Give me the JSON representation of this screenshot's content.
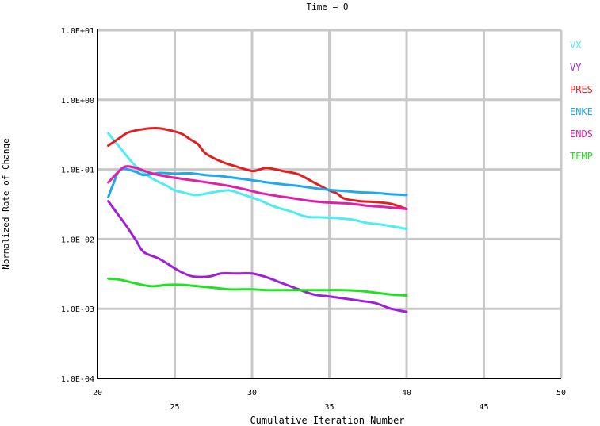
{
  "chart_data": {
    "type": "line",
    "title": "Time = 0",
    "xlabel": "Cumulative Iteration Number",
    "ylabel": "Normalized Rate of Change",
    "xlim": [
      20,
      50
    ],
    "ylim": [
      0.0001,
      10
    ],
    "yscale": "log",
    "grid": true,
    "legend_position": "right",
    "x_ticks": [
      20,
      25,
      30,
      35,
      40,
      45,
      50
    ],
    "y_ticks": [
      {
        "value": 10,
        "label": "1.0E+01"
      },
      {
        "value": 1,
        "label": "1.0E+00"
      },
      {
        "value": 0.1,
        "label": "1.0E-01"
      },
      {
        "value": 0.01,
        "label": "1.0E-02"
      },
      {
        "value": 0.001,
        "label": "1.0E-03"
      },
      {
        "value": 0.0001,
        "label": "1.0E-04"
      }
    ],
    "series": [
      {
        "name": "VX",
        "color": "#4dedf0",
        "points": [
          [
            20.7,
            0.33
          ],
          [
            21.5,
            0.2
          ],
          [
            22.5,
            0.11
          ],
          [
            23.5,
            0.075
          ],
          [
            24.5,
            0.058
          ],
          [
            25,
            0.05
          ],
          [
            25.5,
            0.047
          ],
          [
            26,
            0.044
          ],
          [
            26.5,
            0.043
          ],
          [
            27.5,
            0.047
          ],
          [
            28.5,
            0.05
          ],
          [
            29.5,
            0.043
          ],
          [
            30.5,
            0.036
          ],
          [
            31.5,
            0.029
          ],
          [
            32.5,
            0.025
          ],
          [
            33.5,
            0.021
          ],
          [
            34.5,
            0.0205
          ],
          [
            35.5,
            0.02
          ],
          [
            36.5,
            0.019
          ],
          [
            37.5,
            0.017
          ],
          [
            38.5,
            0.016
          ],
          [
            40,
            0.014
          ]
        ]
      },
      {
        "name": "VY",
        "color": "#a020d8",
        "points": [
          [
            20.7,
            0.035
          ],
          [
            21.5,
            0.02
          ],
          [
            22,
            0.014
          ],
          [
            22.5,
            0.0095
          ],
          [
            23,
            0.0065
          ],
          [
            24,
            0.0052
          ],
          [
            25,
            0.0038
          ],
          [
            25.5,
            0.0033
          ],
          [
            26.2,
            0.0029
          ],
          [
            27.2,
            0.0029
          ],
          [
            28,
            0.0032
          ],
          [
            29,
            0.0032
          ],
          [
            30,
            0.0032
          ],
          [
            31,
            0.0028
          ],
          [
            32,
            0.0023
          ],
          [
            33,
            0.0019
          ],
          [
            34,
            0.0016
          ],
          [
            35,
            0.0015
          ],
          [
            36,
            0.0014
          ],
          [
            37,
            0.0013
          ],
          [
            38,
            0.0012
          ],
          [
            39,
            0.001
          ],
          [
            40,
            0.0009
          ]
        ]
      },
      {
        "name": "PRES",
        "color": "#e02020",
        "points": [
          [
            20.7,
            0.22
          ],
          [
            21.5,
            0.29
          ],
          [
            22,
            0.34
          ],
          [
            23,
            0.38
          ],
          [
            24,
            0.39
          ],
          [
            25,
            0.35
          ],
          [
            25.5,
            0.32
          ],
          [
            26,
            0.27
          ],
          [
            26.5,
            0.23
          ],
          [
            27,
            0.17
          ],
          [
            28,
            0.13
          ],
          [
            29,
            0.11
          ],
          [
            30,
            0.095
          ],
          [
            30.5,
            0.1
          ],
          [
            31,
            0.105
          ],
          [
            32,
            0.095
          ],
          [
            33,
            0.085
          ],
          [
            34,
            0.065
          ],
          [
            35,
            0.05
          ],
          [
            35.5,
            0.045
          ],
          [
            36,
            0.038
          ],
          [
            37,
            0.035
          ],
          [
            38,
            0.034
          ],
          [
            39,
            0.032
          ],
          [
            40,
            0.027
          ]
        ]
      },
      {
        "name": "ENKE",
        "color": "#20a8e8",
        "points": [
          [
            20.7,
            0.04
          ],
          [
            21,
            0.06
          ],
          [
            21.5,
            0.1
          ],
          [
            22.5,
            0.092
          ],
          [
            23,
            0.083
          ],
          [
            24,
            0.089
          ],
          [
            25,
            0.087
          ],
          [
            26,
            0.088
          ],
          [
            27,
            0.083
          ],
          [
            28,
            0.08
          ],
          [
            29,
            0.075
          ],
          [
            30,
            0.07
          ],
          [
            31,
            0.065
          ],
          [
            32,
            0.061
          ],
          [
            33,
            0.058
          ],
          [
            34,
            0.054
          ],
          [
            35,
            0.051
          ],
          [
            36,
            0.049
          ],
          [
            37,
            0.047
          ],
          [
            38,
            0.046
          ],
          [
            39,
            0.044
          ],
          [
            40,
            0.043
          ]
        ]
      },
      {
        "name": "ENDS",
        "color": "#e020a8",
        "points": [
          [
            20.7,
            0.065
          ],
          [
            21.3,
            0.09
          ],
          [
            21.8,
            0.11
          ],
          [
            22.5,
            0.105
          ],
          [
            23.5,
            0.088
          ],
          [
            24.5,
            0.079
          ],
          [
            25.5,
            0.073
          ],
          [
            26.5,
            0.068
          ],
          [
            27.5,
            0.063
          ],
          [
            28.5,
            0.058
          ],
          [
            29.5,
            0.052
          ],
          [
            30.5,
            0.046
          ],
          [
            31.5,
            0.042
          ],
          [
            32.5,
            0.039
          ],
          [
            33.5,
            0.036
          ],
          [
            34.5,
            0.034
          ],
          [
            35.5,
            0.033
          ],
          [
            36.5,
            0.032
          ],
          [
            37.5,
            0.03
          ],
          [
            38.5,
            0.029
          ],
          [
            40,
            0.027
          ]
        ]
      },
      {
        "name": "TEMP",
        "color": "#22e022",
        "points": [
          [
            20.7,
            0.0027
          ],
          [
            21.5,
            0.0026
          ],
          [
            22.5,
            0.0023
          ],
          [
            23.5,
            0.0021
          ],
          [
            24.5,
            0.0022
          ],
          [
            25.5,
            0.0022
          ],
          [
            26.5,
            0.0021
          ],
          [
            27.5,
            0.002
          ],
          [
            28.5,
            0.0019
          ],
          [
            30,
            0.0019
          ],
          [
            31,
            0.00185
          ],
          [
            32,
            0.00185
          ],
          [
            33,
            0.00185
          ],
          [
            34,
            0.00185
          ],
          [
            35,
            0.00185
          ],
          [
            36,
            0.00185
          ],
          [
            37,
            0.0018
          ],
          [
            38,
            0.0017
          ],
          [
            39,
            0.0016
          ],
          [
            40,
            0.00155
          ]
        ]
      }
    ]
  }
}
